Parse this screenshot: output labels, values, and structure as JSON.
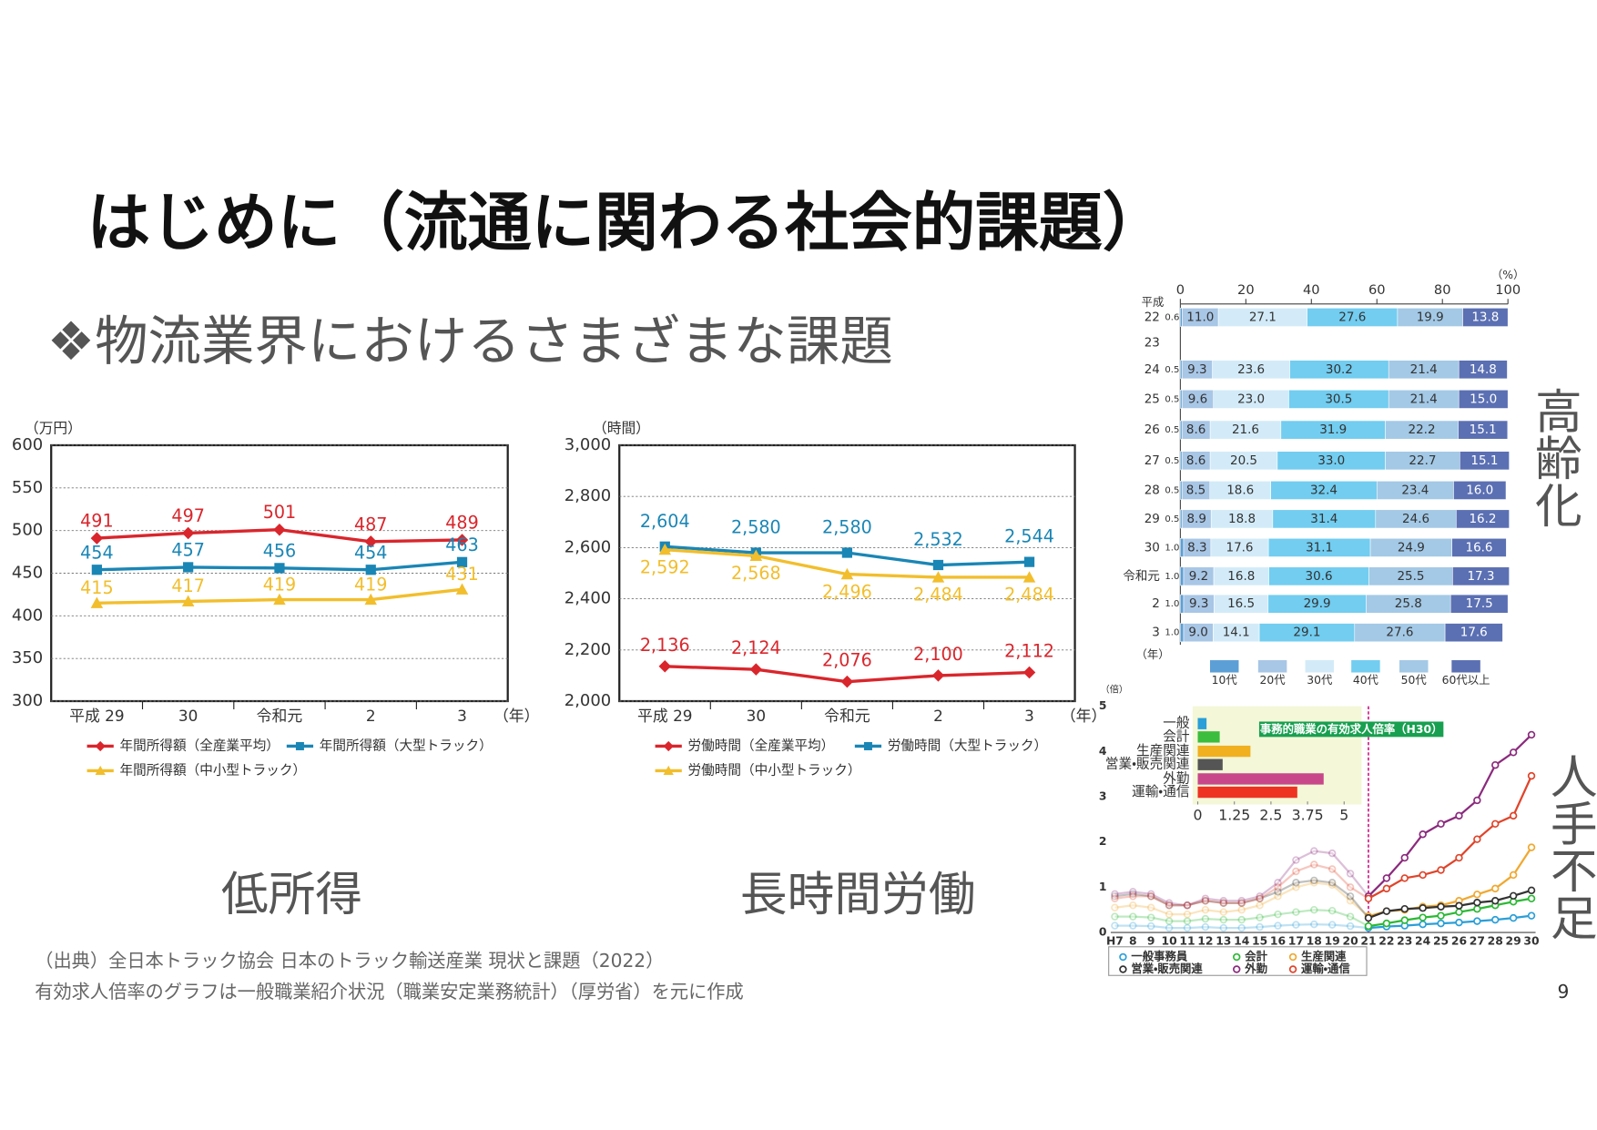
{
  "slide": {
    "title": "はじめに（流通に関わる社会的課題）",
    "subtitle": "❖物流業界におけるさまざまな課題",
    "sources": [
      "（出典）全日本トラック協会 日本のトラック輸送産業 現状と課題（2022）",
      "有効求人倍率のグラフは一般職業紹介状況（職業安定業務統計）（厚労省）を元に作成"
    ],
    "page": 9
  },
  "chart_data": [
    {
      "type": "line",
      "caption": "低所得",
      "y_label": "（万円）",
      "x_unit": "（年）",
      "categories": [
        "平成 29",
        "30",
        "令和元",
        "2",
        "3"
      ],
      "ylim": [
        300,
        600
      ],
      "yticks": [
        300,
        350,
        400,
        450,
        500,
        550,
        600
      ],
      "grid": true,
      "series": [
        {
          "name": "年間所得額（全産業平均）",
          "color": "#d9262c",
          "marker": "diamond",
          "values": [
            491,
            497,
            501,
            487,
            489
          ]
        },
        {
          "name": "年間所得額（大型トラック）",
          "color": "#1a86b5",
          "marker": "square",
          "values": [
            454,
            457,
            456,
            454,
            463
          ]
        },
        {
          "name": "年間所得額（中小型トラック）",
          "color": "#f2be2c",
          "marker": "triangle",
          "values": [
            415,
            417,
            419,
            419,
            431
          ]
        }
      ]
    },
    {
      "type": "line",
      "caption": "長時間労働",
      "y_label": "（時間）",
      "x_unit": "（年）",
      "categories": [
        "平成 29",
        "30",
        "令和元",
        "2",
        "3"
      ],
      "ylim": [
        2000,
        3000
      ],
      "yticks": [
        {
          "value": 2000,
          "label": "2,000"
        },
        {
          "value": 2200,
          "label": "2,200"
        },
        {
          "value": 2400,
          "label": "2,400"
        },
        {
          "value": 2600,
          "label": "2,600"
        },
        {
          "value": 2800,
          "label": "2,800"
        },
        {
          "value": 3000,
          "label": "3,000"
        }
      ],
      "grid": true,
      "series": [
        {
          "name": "労働時間（全産業平均）",
          "color": "#d9262c",
          "marker": "diamond",
          "values": [
            2136,
            2124,
            2076,
            2100,
            2112
          ],
          "value_labels": [
            "2,136",
            "2,124",
            "2,076",
            "2,100",
            "2,112"
          ]
        },
        {
          "name": "労働時間（大型トラック）",
          "color": "#1a86b5",
          "marker": "square",
          "values": [
            2604,
            2580,
            2580,
            2532,
            2544
          ],
          "value_labels": [
            "2,604",
            "2,580",
            "2,580",
            "2,532",
            "2,544"
          ]
        },
        {
          "name": "労働時間（中小型トラック）",
          "color": "#f2be2c",
          "marker": "triangle",
          "values": [
            2592,
            2568,
            2496,
            2484,
            2484
          ],
          "value_labels": [
            "2,592",
            "2,568",
            "2,496",
            "2,484",
            "2,484"
          ]
        }
      ]
    },
    {
      "type": "stacked-bar",
      "caption": "高齢化",
      "era_label": "平成",
      "y_label": "（年）",
      "x_unit": "（%）",
      "categories": [
        "22",
        "23",
        "24",
        "25",
        "26",
        "27",
        "28",
        "29",
        "30",
        "令和元",
        "2",
        "3"
      ],
      "xlim": [
        0,
        100
      ],
      "xticks": [
        0,
        20,
        40,
        60,
        80,
        100
      ],
      "series": [
        {
          "name": "10代",
          "color": "#5c9fd6",
          "values": [
            0.6,
            null,
            0.5,
            0.5,
            0.5,
            0.5,
            0.5,
            0.5,
            1.0,
            1.0,
            1.0,
            1.0
          ],
          "value_labels": [
            "0.6",
            null,
            "0.5",
            "0.5",
            "0.5",
            "0.5",
            "0.5",
            "0.5",
            "1.0",
            "1.0",
            "1.0",
            "1.0"
          ]
        },
        {
          "name": "20代",
          "color": "#a8c6e6",
          "values": [
            11.0,
            null,
            9.3,
            9.6,
            8.6,
            8.6,
            8.5,
            8.9,
            8.3,
            9.2,
            9.3,
            9.0
          ],
          "value_labels": [
            "11.0",
            null,
            "9.3",
            "9.6",
            "8.6",
            "8.6",
            "8.5",
            "8.9",
            "8.3",
            "9.2",
            "9.3",
            "9.0"
          ]
        },
        {
          "name": "30代",
          "color": "#d3ebf8",
          "values": [
            27.1,
            null,
            23.6,
            23.0,
            21.6,
            20.5,
            18.6,
            18.8,
            17.6,
            16.8,
            16.5,
            14.1
          ],
          "value_labels": [
            "27.1",
            null,
            "23.6",
            "23.0",
            "21.6",
            "20.5",
            "18.6",
            "18.8",
            "17.6",
            "16.8",
            "16.5",
            "14.1"
          ]
        },
        {
          "name": "40代",
          "color": "#72cdf0",
          "values": [
            27.6,
            null,
            30.2,
            30.5,
            31.9,
            33.0,
            32.4,
            31.4,
            31.1,
            30.6,
            29.9,
            29.1
          ],
          "value_labels": [
            "27.6",
            null,
            "30.2",
            "30.5",
            "31.9",
            "33.0",
            "32.4",
            "31.4",
            "31.1",
            "30.6",
            "29.9",
            "29.1"
          ]
        },
        {
          "name": "50代",
          "color": "#a3c9e6",
          "values": [
            19.9,
            null,
            21.4,
            21.4,
            22.2,
            22.7,
            23.4,
            24.6,
            24.9,
            25.5,
            25.8,
            27.6
          ],
          "value_labels": [
            "19.9",
            null,
            "21.4",
            "21.4",
            "22.2",
            "22.7",
            "23.4",
            "24.6",
            "24.9",
            "25.5",
            "25.8",
            "27.6"
          ]
        },
        {
          "name": "60代以上",
          "color": "#5b70b3",
          "values": [
            13.8,
            null,
            14.8,
            15.0,
            15.1,
            15.1,
            16.0,
            16.2,
            16.6,
            17.3,
            17.5,
            17.6
          ],
          "value_labels": [
            "13.8",
            null,
            "14.8",
            "15.0",
            "15.1",
            "15.1",
            "16.0",
            "16.2",
            "16.6",
            "17.3",
            "17.5",
            "17.6"
          ]
        }
      ]
    },
    {
      "type": "line",
      "caption": "人手不足",
      "y_label": "（倍）",
      "categories": [
        "H7",
        "8",
        "9",
        "10",
        "11",
        "12",
        "13",
        "14",
        "15",
        "16",
        "17",
        "18",
        "19",
        "20",
        "21",
        "22",
        "23",
        "24",
        "25",
        "26",
        "27",
        "28",
        "29",
        "30"
      ],
      "ylim": [
        0,
        5
      ],
      "yticks": [
        0,
        1,
        2,
        3,
        4,
        5
      ],
      "grid": false,
      "series": [
        {
          "name": "一般事務員",
          "color": "#2a9fd8",
          "marker": "circle",
          "values": [
            0.15,
            0.15,
            0.14,
            0.1,
            0.1,
            0.12,
            0.1,
            0.1,
            0.12,
            0.15,
            0.17,
            0.18,
            0.17,
            0.14,
            0.1,
            0.13,
            0.15,
            0.18,
            0.2,
            0.22,
            0.25,
            0.28,
            0.32,
            0.37
          ]
        },
        {
          "name": "会計",
          "color": "#2bb934",
          "marker": "circle",
          "values": [
            0.35,
            0.35,
            0.33,
            0.25,
            0.25,
            0.3,
            0.28,
            0.28,
            0.33,
            0.4,
            0.45,
            0.5,
            0.48,
            0.35,
            0.14,
            0.2,
            0.27,
            0.33,
            0.37,
            0.45,
            0.52,
            0.6,
            0.68,
            0.75
          ]
        },
        {
          "name": "生産関連",
          "color": "#f0a830",
          "marker": "circle",
          "values": [
            0.55,
            0.6,
            0.55,
            0.4,
            0.4,
            0.5,
            0.45,
            0.5,
            0.6,
            0.8,
            1.0,
            1.1,
            1.05,
            0.7,
            0.36,
            0.47,
            0.5,
            0.57,
            0.6,
            0.7,
            0.84,
            0.97,
            1.27,
            1.88
          ]
        },
        {
          "name": "営業・販売関連",
          "color": "#333333",
          "marker": "circle",
          "values": [
            0.8,
            0.85,
            0.8,
            0.6,
            0.6,
            0.7,
            0.65,
            0.65,
            0.75,
            0.9,
            1.1,
            1.15,
            1.1,
            0.8,
            0.32,
            0.47,
            0.52,
            0.54,
            0.57,
            0.59,
            0.66,
            0.7,
            0.81,
            0.93
          ]
        },
        {
          "name": "外勤",
          "color": "#8b2a7d",
          "marker": "circle",
          "values": [
            0.85,
            0.9,
            0.85,
            0.65,
            0.6,
            0.75,
            0.7,
            0.7,
            0.8,
            1.1,
            1.6,
            1.8,
            1.75,
            1.3,
            0.8,
            1.2,
            1.65,
            2.17,
            2.4,
            2.58,
            2.92,
            3.7,
            3.98,
            4.37
          ]
        },
        {
          "name": "運輸・通信",
          "color": "#e0442a",
          "marker": "circle",
          "values": [
            0.75,
            0.8,
            0.8,
            0.6,
            0.6,
            0.7,
            0.65,
            0.65,
            0.75,
            1.0,
            1.35,
            1.5,
            1.4,
            1.0,
            0.75,
            0.97,
            1.2,
            1.27,
            1.38,
            1.65,
            2.06,
            2.4,
            2.58,
            3.46
          ]
        }
      ]
    },
    {
      "type": "hbar",
      "title": "事務的職業の有効求人倍率（H30）",
      "categories": [
        "一般",
        "会計",
        "生産関連",
        "営業・販売関連",
        "外勤",
        "運輸・通信"
      ],
      "values": [
        0.3,
        0.75,
        1.8,
        0.85,
        4.3,
        3.4
      ],
      "colors": [
        "#2a9fd8",
        "#3dbd3d",
        "#f0b020",
        "#555555",
        "#c8478a",
        "#ee3322"
      ],
      "xlim": [
        0,
        5
      ],
      "xticks": [
        0,
        1.25,
        2.5,
        3.75,
        5
      ]
    }
  ]
}
